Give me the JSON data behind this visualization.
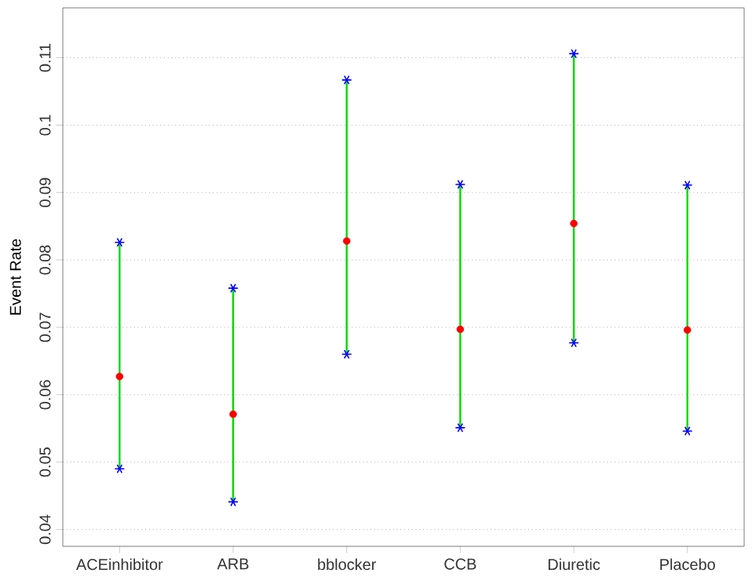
{
  "chart_data": {
    "type": "scatter",
    "ylabel": "Event Rate",
    "categories": [
      "ACEinhibitor",
      "ARB",
      "bblocker",
      "CCB",
      "Diuretic",
      "Placebo"
    ],
    "series": [
      {
        "color": "#ff0000",
        "values": [
          0.0627,
          0.0571,
          0.0828,
          0.0697,
          0.0854,
          0.0696
        ],
        "errors": [
          [
            0.049,
            0.0826
          ],
          [
            0.0441,
            0.0758
          ],
          [
            0.066,
            0.1067
          ],
          [
            0.0551,
            0.0912
          ],
          [
            0.0677,
            0.1106
          ],
          [
            0.0546,
            0.0911
          ]
        ]
      }
    ],
    "ylim": [
      0.0375,
      0.1174
    ],
    "yticks": [
      0.04,
      0.05,
      0.06,
      0.07,
      0.08,
      0.09,
      0.1,
      0.11
    ],
    "grid": "y",
    "marker": "circle"
  }
}
